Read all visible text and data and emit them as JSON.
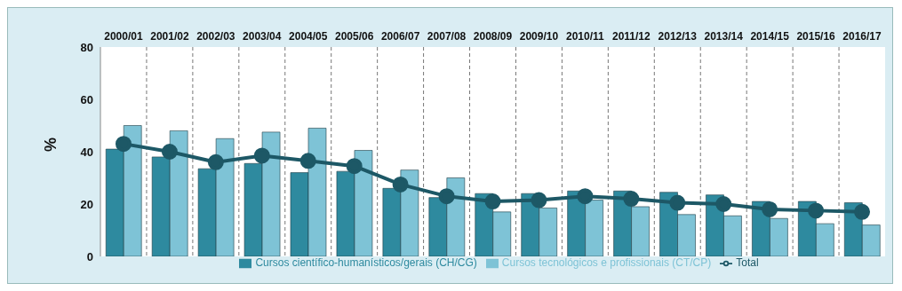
{
  "chart_data": {
    "type": "bar",
    "ylabel": "%",
    "categories": [
      "2000/01",
      "2001/02",
      "2002/03",
      "2003/04",
      "2004/05",
      "2005/06",
      "2006/07",
      "2007/08",
      "2008/09",
      "2009/10",
      "2010/11",
      "2011/12",
      "2012/13",
      "2013/14",
      "2014/15",
      "2015/16",
      "2016/17"
    ],
    "series": [
      {
        "name": "Cursos científico-humanísticos/gerais (CH/CG)",
        "color": "#2e8a9f",
        "values": [
          41,
          38,
          33.5,
          35.5,
          32,
          32.5,
          26,
          22.5,
          24,
          24,
          25,
          25,
          24.5,
          23.5,
          21,
          21,
          20.5
        ]
      },
      {
        "name": "Cursos tecnológicos e profissionais (CT/CP)",
        "color": "#7ec3d6",
        "values": [
          50,
          48,
          45,
          47.5,
          49,
          40.5,
          33,
          30,
          17,
          18.5,
          21.5,
          19,
          16,
          15.5,
          14.5,
          12.5,
          12
        ]
      },
      {
        "name": "Total",
        "type": "line",
        "color": "#1d5866",
        "marker": "circle",
        "values": [
          43,
          40,
          36,
          38.5,
          36.5,
          34.5,
          27.5,
          23,
          21,
          21.5,
          23,
          22,
          20.5,
          20,
          18,
          17.5,
          17
        ]
      }
    ],
    "ylim": [
      0,
      80
    ],
    "yticks": [
      0,
      20,
      40,
      60,
      80
    ],
    "grid": "x",
    "legend": "bottom"
  }
}
